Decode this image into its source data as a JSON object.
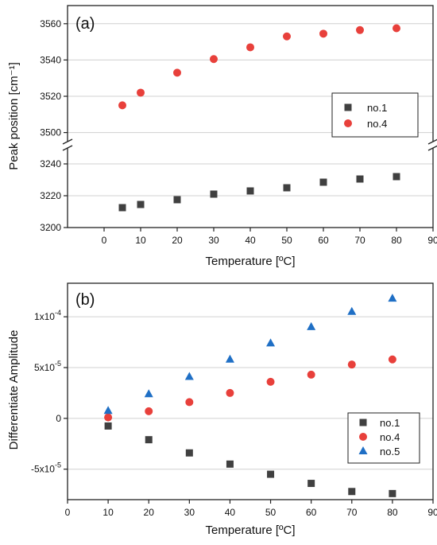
{
  "chart_data": [
    {
      "type": "scatter",
      "panel_label": "(a)",
      "xlabel": "Temperature [ºC]",
      "ylabel": "Peak position [cm⁻¹]",
      "xlim": [
        -10,
        90
      ],
      "xticks": [
        0,
        10,
        20,
        30,
        40,
        50,
        60,
        70,
        80,
        90
      ],
      "broken_y_axis": true,
      "y_segments": [
        {
          "ylim": [
            3200,
            3250
          ],
          "yticks": [
            3200,
            3220,
            3240
          ]
        },
        {
          "ylim": [
            3495,
            3570
          ],
          "yticks": [
            3500,
            3520,
            3540,
            3560
          ]
        }
      ],
      "grid": "horizontal",
      "legend_position": "right, middle",
      "series": [
        {
          "name": "no.1",
          "marker": "square",
          "color": "#404040",
          "x": [
            5,
            10,
            20,
            30,
            40,
            50,
            60,
            70,
            80
          ],
          "y": [
            3212.5,
            3214.5,
            3217.5,
            3221,
            3223,
            3225,
            3228.5,
            3230.5,
            3232
          ]
        },
        {
          "name": "no.4",
          "marker": "circle",
          "color": "#e8403b",
          "x": [
            5,
            10,
            20,
            30,
            40,
            50,
            60,
            70,
            80
          ],
          "y": [
            3515,
            3522,
            3533,
            3540.5,
            3547,
            3553,
            3554.5,
            3556.5,
            3557.5
          ]
        }
      ]
    },
    {
      "type": "scatter",
      "panel_label": "(b)",
      "xlabel": "Temperature [ºC]",
      "ylabel": "Differentiate Amplitude",
      "xlim": [
        0,
        90
      ],
      "xticks": [
        0,
        10,
        20,
        30,
        40,
        50,
        60,
        70,
        80,
        90
      ],
      "ylim": [
        -8e-05,
        0.000133
      ],
      "ytick_labels": [
        {
          "value": 0.0001,
          "base": "1x10",
          "exp": "-4"
        },
        {
          "value": 5e-05,
          "base": "5x10",
          "exp": "-5"
        },
        {
          "value": 0,
          "base": "0",
          "exp": ""
        },
        {
          "value": -5e-05,
          "base": "-5x10",
          "exp": "-5"
        }
      ],
      "grid": "horizontal",
      "legend_position": "bottom-right",
      "series": [
        {
          "name": "no.1",
          "marker": "square",
          "color": "#404040",
          "x": [
            10,
            20,
            30,
            40,
            50,
            60,
            70,
            80
          ],
          "y": [
            -7.5e-06,
            -2.1e-05,
            -3.4e-05,
            -4.5e-05,
            -5.5e-05,
            -6.4e-05,
            -7.2e-05,
            -7.4e-05
          ]
        },
        {
          "name": "no.4",
          "marker": "circle",
          "color": "#e8403b",
          "x": [
            10,
            20,
            30,
            40,
            50,
            60,
            70,
            80
          ],
          "y": [
            1e-06,
            7e-06,
            1.6e-05,
            2.5e-05,
            3.6e-05,
            4.3e-05,
            5.3e-05,
            5.8e-05
          ]
        },
        {
          "name": "no.5",
          "marker": "triangle",
          "color": "#1f6fc5",
          "x": [
            10,
            20,
            30,
            40,
            50,
            60,
            70,
            80
          ],
          "y": [
            7.5e-06,
            2.4e-05,
            4.1e-05,
            5.8e-05,
            7.4e-05,
            9e-05,
            0.000105,
            0.000118
          ]
        }
      ]
    }
  ]
}
